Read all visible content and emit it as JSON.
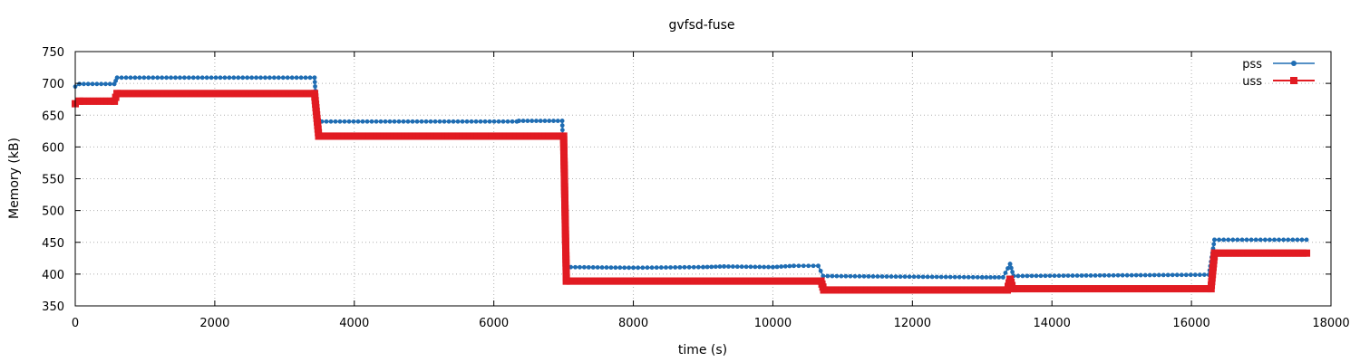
{
  "chart_data": {
    "type": "line",
    "title": "gvfsd-fuse",
    "xlabel": "time (s)",
    "ylabel": "Memory (kB)",
    "xlim": [
      0,
      18000
    ],
    "ylim": [
      350,
      750
    ],
    "x_ticks": [
      0,
      2000,
      4000,
      6000,
      8000,
      10000,
      12000,
      14000,
      16000,
      18000
    ],
    "y_ticks": [
      350,
      400,
      450,
      500,
      550,
      600,
      650,
      700,
      750
    ],
    "grid": true,
    "legend_position": "top-right",
    "series": [
      {
        "name": "pss",
        "color": "#1f6db3",
        "marker": "dot",
        "points": [
          [
            0,
            695
          ],
          [
            60,
            699
          ],
          [
            560,
            699
          ],
          [
            600,
            709
          ],
          [
            3430,
            709
          ],
          [
            3470,
            640
          ],
          [
            6330,
            640
          ],
          [
            6360,
            641
          ],
          [
            6980,
            641
          ],
          [
            7040,
            411
          ],
          [
            8000,
            410
          ],
          [
            9000,
            411
          ],
          [
            9300,
            412
          ],
          [
            10000,
            411
          ],
          [
            10300,
            413
          ],
          [
            10650,
            413
          ],
          [
            10720,
            397
          ],
          [
            13000,
            395
          ],
          [
            13300,
            395
          ],
          [
            13400,
            416
          ],
          [
            13450,
            397
          ],
          [
            16250,
            399
          ],
          [
            16330,
            454
          ],
          [
            17650,
            454
          ]
        ]
      },
      {
        "name": "uss",
        "color": "#e11b22",
        "marker": "square",
        "points": [
          [
            0,
            668
          ],
          [
            60,
            672
          ],
          [
            560,
            672
          ],
          [
            600,
            684
          ],
          [
            3430,
            684
          ],
          [
            3490,
            617
          ],
          [
            7000,
            617
          ],
          [
            7040,
            389
          ],
          [
            10690,
            389
          ],
          [
            10730,
            375
          ],
          [
            13360,
            375
          ],
          [
            13400,
            392
          ],
          [
            13440,
            377
          ],
          [
            16280,
            377
          ],
          [
            16330,
            433
          ],
          [
            17650,
            433
          ]
        ]
      }
    ]
  }
}
